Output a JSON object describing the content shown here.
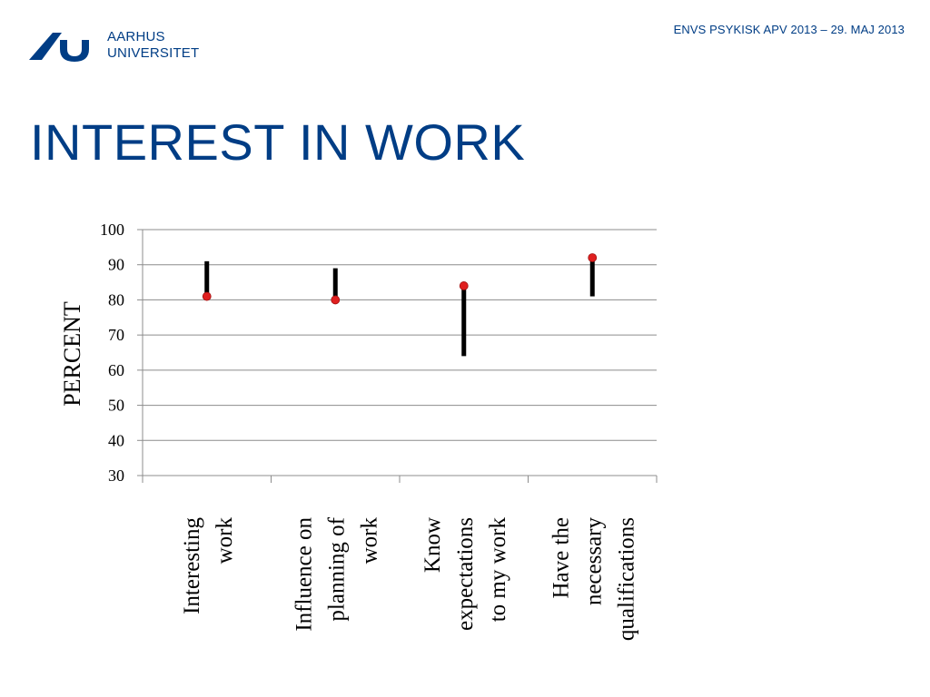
{
  "header": {
    "logo_line1": "AARHUS",
    "logo_line2": "UNIVERSITET",
    "note": "ENVS PSYKISK APV 2013 – 29. MAJ 2013"
  },
  "slide": {
    "title": "INTEREST IN WORK"
  },
  "chart_data": {
    "type": "scatter",
    "title": "",
    "xlabel": "",
    "ylabel": "PERCENT",
    "ylim": [
      30,
      100
    ],
    "yticks": [
      30,
      40,
      50,
      60,
      70,
      80,
      90,
      100
    ],
    "grid": true,
    "categories": [
      [
        "Interesting",
        "work"
      ],
      [
        "Influence on",
        "planning of",
        "work"
      ],
      [
        "Know",
        "expectations",
        "to my  work"
      ],
      [
        "Have the",
        "necessary",
        "qualifications"
      ]
    ],
    "series": [
      {
        "values": [
          81,
          80,
          84,
          92
        ]
      }
    ],
    "ranges": [
      {
        "low": 82,
        "high": 91
      },
      {
        "low": 81,
        "high": 89
      },
      {
        "low": 64,
        "high": 83
      },
      {
        "low": 81,
        "high": 91
      }
    ],
    "colors": {
      "point": "#e02020",
      "range": "#000000",
      "grid": "#8c8c8c"
    }
  }
}
